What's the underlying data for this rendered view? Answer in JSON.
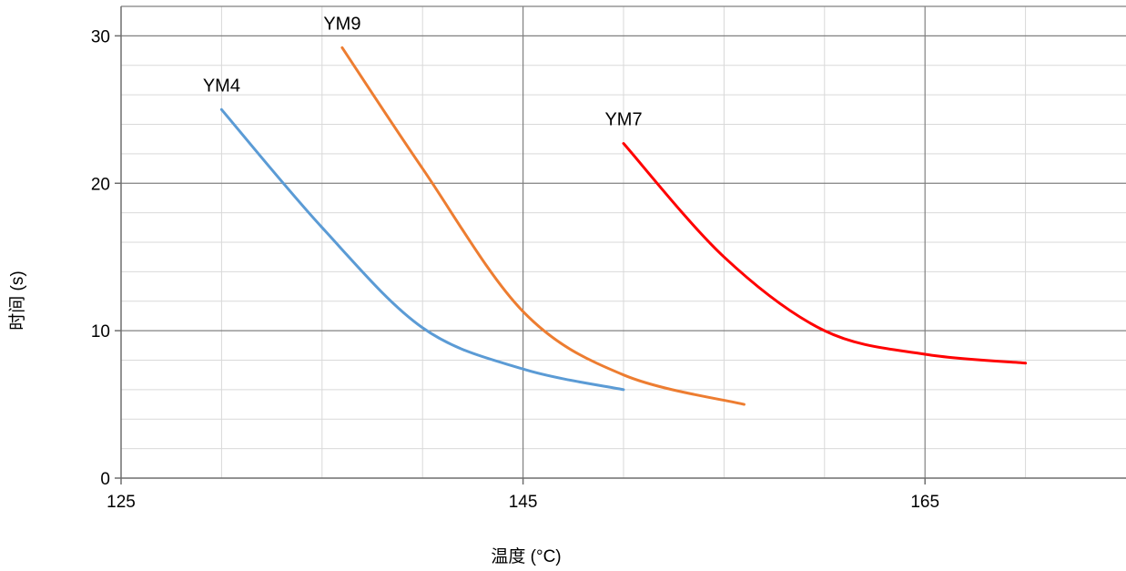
{
  "chart_data": {
    "type": "line",
    "title": "",
    "xlabel": "温度 (°C)",
    "ylabel": "时间 (s)",
    "xlim": [
      125,
      175
    ],
    "ylim": [
      0,
      32
    ],
    "x_major_ticks": [
      125,
      145,
      165
    ],
    "y_major_ticks": [
      0,
      10,
      20,
      30
    ],
    "x_minor_step": 5,
    "y_minor_step": 2,
    "grid": true,
    "legend": "none",
    "series": [
      {
        "name": "YM4",
        "color": "#5B9BD5",
        "x": [
          130,
          135,
          140,
          145,
          150
        ],
        "y": [
          25,
          17,
          10.2,
          7.4,
          6
        ]
      },
      {
        "name": "YM9",
        "color": "#ED7D31",
        "x": [
          136,
          140,
          145,
          150,
          156
        ],
        "y": [
          29.2,
          21,
          11.3,
          7,
          5
        ]
      },
      {
        "name": "YM7",
        "color": "#FF0000",
        "x": [
          150,
          155,
          160,
          165,
          170
        ],
        "y": [
          22.7,
          15,
          10,
          8.4,
          7.8
        ]
      }
    ]
  }
}
